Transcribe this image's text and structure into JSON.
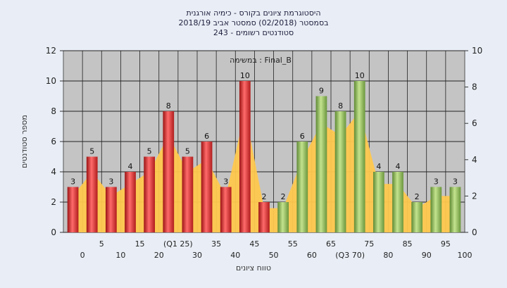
{
  "chart_data": {
    "type": "bar",
    "title_lines": [
      "היסטוגרמת ציונים בקורס - כימיה אורגנית",
      "בסמסטר  (02/2018)  סמסטר אביב 2018/19",
      "סטודנטים רשומים - 243"
    ],
    "inner_label": "במשימה : Final_B",
    "xlabel": "טווח ציונים",
    "ylabel": "מספר סטודנטים",
    "ylim": [
      0,
      12
    ],
    "y2lim": [
      0,
      10
    ],
    "yticks": [
      "0",
      "2",
      "4",
      "6",
      "8",
      "10",
      "12"
    ],
    "y2ticks": [
      "0",
      "2",
      "4",
      "6",
      "8",
      "10"
    ],
    "categories": [
      "0",
      "5",
      "10",
      "15",
      "20",
      "(Q1 25)",
      "30",
      "35",
      "40",
      "45",
      "50",
      "55",
      "60",
      "65",
      "(Q3 70)",
      "75",
      "80",
      "85",
      "90",
      "95",
      "100"
    ],
    "values": [
      3,
      5,
      3,
      4,
      5,
      8,
      5,
      6,
      3,
      10,
      2,
      2,
      6,
      9,
      8,
      10,
      4,
      4,
      2,
      3,
      3
    ],
    "bar_groups": [
      "red",
      "red",
      "red",
      "red",
      "red",
      "red",
      "red",
      "red",
      "red",
      "red",
      "red",
      "green",
      "green",
      "green",
      "green",
      "green",
      "green",
      "green",
      "green",
      "green",
      "green"
    ],
    "area_series": [
      3,
      5,
      3,
      4,
      5,
      8,
      5,
      6,
      3,
      10,
      2,
      2,
      6,
      9,
      8,
      10,
      4,
      4,
      2,
      3,
      3
    ],
    "grid": true,
    "colors": {
      "red": "#e23a3a",
      "green": "#8fbf5a",
      "area": "#ffc84e",
      "plot_bg": "#c4c4c4",
      "page_bg": "#e9eef6"
    }
  }
}
